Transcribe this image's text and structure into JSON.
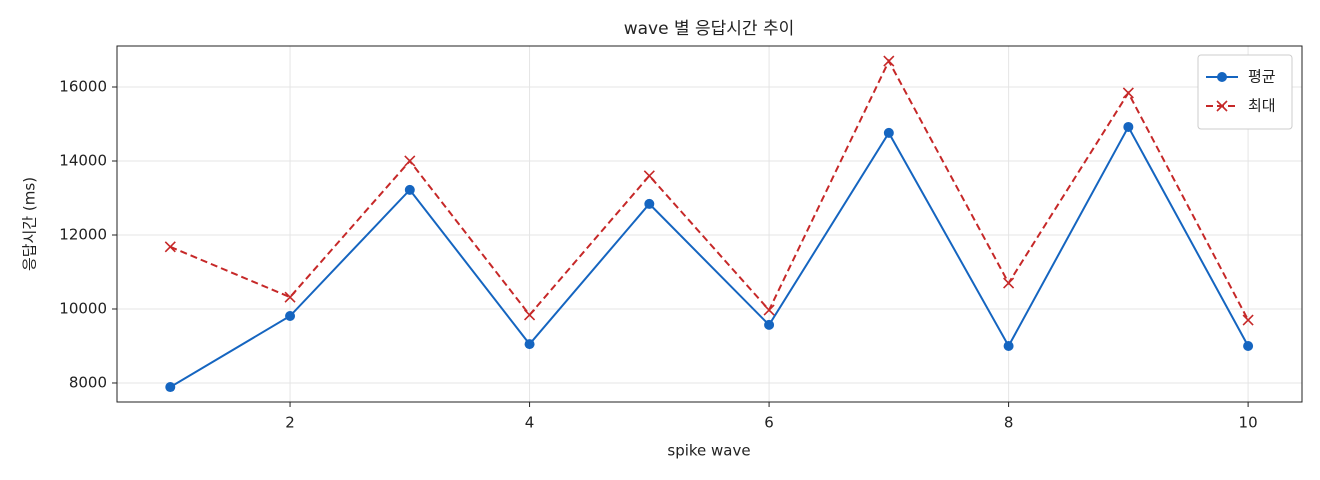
{
  "chart_data": {
    "type": "line",
    "title": "wave 별 응답시간 추이",
    "x_label": "spike wave",
    "y_label": "응답시간 (ms)",
    "x": [
      1,
      2,
      3,
      4,
      5,
      6,
      7,
      8,
      9,
      10
    ],
    "series": [
      {
        "name": "평균",
        "color": "#1565c0",
        "marker": "circle",
        "dashed": false,
        "values": [
          7890,
          9810,
          13220,
          9050,
          12840,
          9570,
          14760,
          9000,
          14920,
          9000
        ]
      },
      {
        "name": "최대",
        "color": "#c62828",
        "marker": "cross",
        "dashed": true,
        "values": [
          11680,
          10320,
          14000,
          9840,
          13600,
          9970,
          16700,
          10700,
          15840,
          9700
        ]
      }
    ],
    "xlim": [
      0.555,
      10.45
    ],
    "xticks": [
      2,
      4,
      6,
      8,
      10
    ],
    "ylim": [
      7486,
      17108
    ],
    "yticks": [
      8000,
      10000,
      12000,
      14000,
      16000
    ],
    "grid": true,
    "legend": "upper right"
  }
}
